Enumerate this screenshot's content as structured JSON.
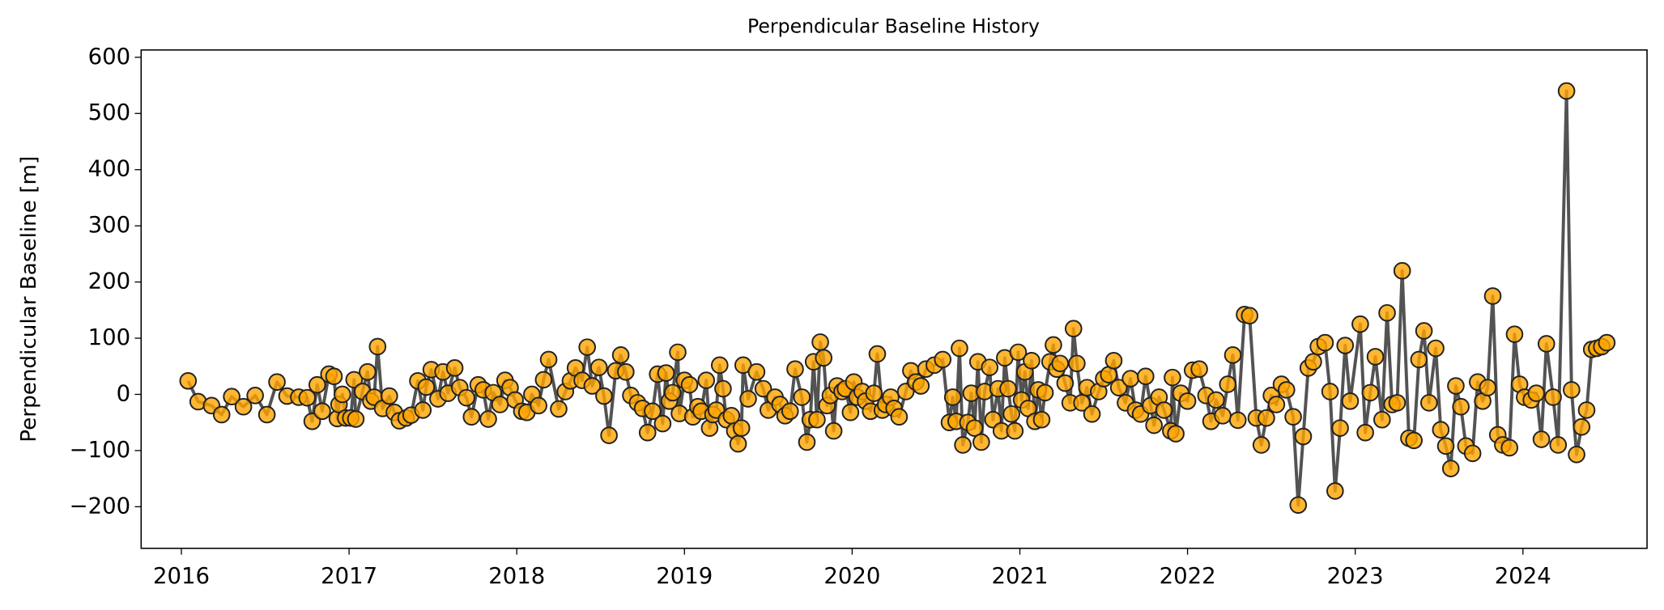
{
  "chart_data": {
    "type": "line",
    "title": "Perpendicular Baseline History",
    "ylabel": "Perpendicular Baseline [m]",
    "x": [
      2016.04,
      2016.1,
      2016.18,
      2016.24,
      2016.3,
      2016.37,
      2016.44,
      2016.51,
      2016.57,
      2016.63,
      2016.7,
      2016.75,
      2016.78,
      2016.81,
      2016.84,
      2016.88,
      2016.91,
      2016.93,
      2016.94,
      2016.96,
      2016.98,
      2017.01,
      2017.03,
      2017.04,
      2017.08,
      2017.11,
      2017.13,
      2017.15,
      2017.17,
      2017.2,
      2017.24,
      2017.27,
      2017.3,
      2017.34,
      2017.37,
      2017.41,
      2017.44,
      2017.46,
      2017.49,
      2017.53,
      2017.56,
      2017.59,
      2017.63,
      2017.66,
      2017.7,
      2017.73,
      2017.77,
      2017.8,
      2017.83,
      2017.86,
      2017.9,
      2017.93,
      2017.96,
      2017.99,
      2018.03,
      2018.06,
      2018.09,
      2018.13,
      2018.16,
      2018.19,
      2018.25,
      2018.29,
      2018.32,
      2018.35,
      2018.39,
      2018.42,
      2018.45,
      2018.49,
      2018.52,
      2018.55,
      2018.59,
      2018.62,
      2018.65,
      2018.68,
      2018.72,
      2018.75,
      2018.78,
      2018.81,
      2018.84,
      2018.87,
      2018.89,
      2018.91,
      2018.93,
      2018.96,
      2018.97,
      2019.0,
      2019.03,
      2019.05,
      2019.08,
      2019.1,
      2019.13,
      2019.15,
      2019.17,
      2019.19,
      2019.21,
      2019.23,
      2019.25,
      2019.28,
      2019.3,
      2019.32,
      2019.34,
      2019.35,
      2019.38,
      2019.43,
      2019.47,
      2019.5,
      2019.54,
      2019.57,
      2019.6,
      2019.63,
      2019.66,
      2019.7,
      2019.73,
      2019.75,
      2019.77,
      2019.79,
      2019.81,
      2019.83,
      2019.85,
      2019.87,
      2019.89,
      2019.91,
      2019.94,
      2019.96,
      2019.99,
      2020.01,
      2020.03,
      2020.06,
      2020.08,
      2020.11,
      2020.13,
      2020.15,
      2020.18,
      2020.2,
      2020.23,
      2020.25,
      2020.28,
      2020.32,
      2020.35,
      2020.38,
      2020.41,
      2020.44,
      2020.49,
      2020.54,
      2020.58,
      2020.6,
      2020.62,
      2020.64,
      2020.66,
      2020.69,
      2020.71,
      2020.73,
      2020.75,
      2020.77,
      2020.79,
      2020.82,
      2020.84,
      2020.87,
      2020.89,
      2020.91,
      2020.93,
      2020.95,
      2020.97,
      2020.99,
      2021.01,
      2021.03,
      2021.05,
      2021.07,
      2021.09,
      2021.11,
      2021.13,
      2021.15,
      2021.18,
      2021.2,
      2021.22,
      2021.24,
      2021.27,
      2021.3,
      2021.32,
      2021.34,
      2021.37,
      2021.4,
      2021.43,
      2021.47,
      2021.5,
      2021.53,
      2021.56,
      2021.59,
      2021.63,
      2021.66,
      2021.69,
      2021.72,
      2021.75,
      2021.78,
      2021.8,
      2021.83,
      2021.86,
      2021.9,
      2021.91,
      2021.93,
      2021.96,
      2022.0,
      2022.03,
      2022.07,
      2022.11,
      2022.14,
      2022.17,
      2022.21,
      2022.24,
      2022.27,
      2022.3,
      2022.34,
      2022.37,
      2022.41,
      2022.44,
      2022.47,
      2022.5,
      2022.53,
      2022.56,
      2022.59,
      2022.63,
      2022.66,
      2022.69,
      2022.72,
      2022.75,
      2022.78,
      2022.82,
      2022.85,
      2022.88,
      2022.91,
      2022.94,
      2022.97,
      2023.03,
      2023.06,
      2023.09,
      2023.12,
      2023.16,
      2023.19,
      2023.22,
      2023.25,
      2023.28,
      2023.32,
      2023.35,
      2023.38,
      2023.41,
      2023.44,
      2023.48,
      2023.51,
      2023.54,
      2023.57,
      2023.6,
      2023.63,
      2023.66,
      2023.7,
      2023.73,
      2023.76,
      2023.79,
      2023.82,
      2023.85,
      2023.88,
      2023.92,
      2023.95,
      2023.98,
      2024.01,
      2024.05,
      2024.08,
      2024.11,
      2024.14,
      2024.18,
      2024.21,
      2024.26,
      2024.29,
      2024.32,
      2024.35,
      2024.38,
      2024.41,
      2024.44,
      2024.47,
      2024.5
    ],
    "series": [
      {
        "color": "#ffa500",
        "line_color": "#404040",
        "values": [
          24,
          -13,
          -20,
          -36,
          -4,
          -22,
          -2,
          -36,
          22,
          -3,
          -5,
          -6,
          -48,
          17,
          -30,
          36,
          32,
          -43,
          -18,
          0,
          -42,
          -42,
          26,
          -44,
          5,
          40,
          -12,
          -5,
          85,
          -25,
          -3,
          -32,
          -47,
          -42,
          -37,
          24,
          -28,
          13,
          44,
          -8,
          40,
          2,
          47,
          12,
          -6,
          -40,
          17,
          8,
          -44,
          3,
          -18,
          25,
          12,
          -10,
          -30,
          -32,
          0,
          -20,
          26,
          62,
          -26,
          5,
          24,
          47,
          25,
          84,
          15,
          48,
          -3,
          -73,
          42,
          70,
          40,
          -2,
          -15,
          -25,
          -68,
          -30,
          36,
          -52,
          38,
          -12,
          3,
          75,
          -34,
          25,
          17,
          -40,
          -22,
          -30,
          25,
          -60,
          -36,
          -28,
          52,
          10,
          -45,
          -38,
          -65,
          -88,
          -60,
          52,
          -8,
          40,
          10,
          -28,
          -5,
          -18,
          -38,
          -30,
          45,
          -5,
          -85,
          -45,
          58,
          -45,
          93,
          65,
          -20,
          -2,
          -65,
          15,
          5,
          10,
          -32,
          22,
          -5,
          5,
          -12,
          -30,
          2,
          72,
          -28,
          -18,
          -5,
          -25,
          -40,
          5,
          42,
          22,
          15,
          45,
          52,
          62,
          -50,
          -5,
          -48,
          82,
          -90,
          -50,
          2,
          -60,
          58,
          -85,
          5,
          48,
          -45,
          10,
          -65,
          65,
          10,
          -35,
          -65,
          75,
          -10,
          40,
          -25,
          60,
          -48,
          8,
          -45,
          3,
          58,
          88,
          45,
          55,
          20,
          -15,
          117,
          55,
          -15,
          12,
          -35,
          5,
          28,
          35,
          60,
          12,
          -15,
          28,
          -28,
          -35,
          32,
          -20,
          -55,
          -5,
          -28,
          -65,
          30,
          -70,
          2,
          -12,
          43,
          45,
          -2,
          -48,
          -10,
          -38,
          18,
          70,
          -46,
          142,
          140,
          -42,
          -90,
          -42,
          -2,
          -18,
          18,
          8,
          -40,
          -197,
          -75,
          47,
          58,
          85,
          92,
          5,
          -172,
          -60,
          87,
          -12,
          125,
          -68,
          3,
          67,
          -45,
          145,
          -18,
          -15,
          220,
          -78,
          -82,
          62,
          113,
          -15,
          82,
          -63,
          -92,
          -132,
          15,
          -22,
          -92,
          -105,
          22,
          -12,
          12,
          175,
          -72,
          -90,
          -95,
          107,
          18,
          -5,
          -10,
          2,
          -80,
          90,
          -5,
          -90,
          540,
          8,
          -107,
          -58,
          -28,
          80,
          82,
          85,
          92
        ]
      }
    ],
    "xlim": [
      2015.76,
      2024.74
    ],
    "xticks": [
      2016,
      2017,
      2018,
      2019,
      2020,
      2021,
      2022,
      2023,
      2024
    ],
    "ylim": [
      -274,
      613
    ],
    "yticks": [
      {
        "value": -200,
        "label": "−200"
      },
      {
        "value": -100,
        "label": "−100"
      },
      0,
      100,
      200,
      300,
      400,
      500,
      600
    ],
    "grid": false
  }
}
